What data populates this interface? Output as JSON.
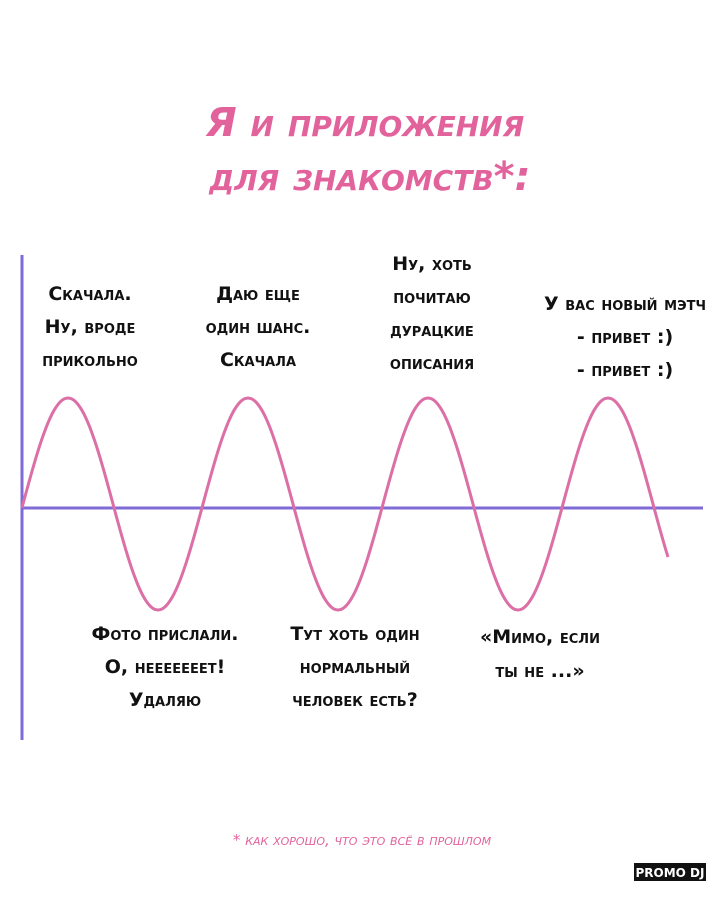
{
  "title": {
    "line1": "Я и приложения",
    "line2": "для знакомств*:"
  },
  "above": [
    {
      "lines": [
        "Скачала.",
        "Ну, вроде",
        "прикольно"
      ]
    },
    {
      "lines": [
        "Даю еще",
        "один шанс.",
        "Скачала"
      ]
    },
    {
      "lines": [
        "Ну, хоть",
        "почитаю",
        "дурацкие",
        "описания"
      ]
    },
    {
      "lines": [
        "У вас новый мэтч",
        "- привет :)",
        "- привет :)"
      ]
    }
  ],
  "below": [
    {
      "lines": [
        "Фото прислали.",
        "О, нееееееет!",
        "Удаляю"
      ]
    },
    {
      "lines": [
        "Тут хоть один",
        "нормальный",
        "человек есть?"
      ]
    },
    {
      "lines": [
        "«Мимо, если",
        "ты не ...»"
      ]
    }
  ],
  "footnote": "* как хорошо, что это всё в прошлом",
  "watermark": "PROMO DJ"
}
